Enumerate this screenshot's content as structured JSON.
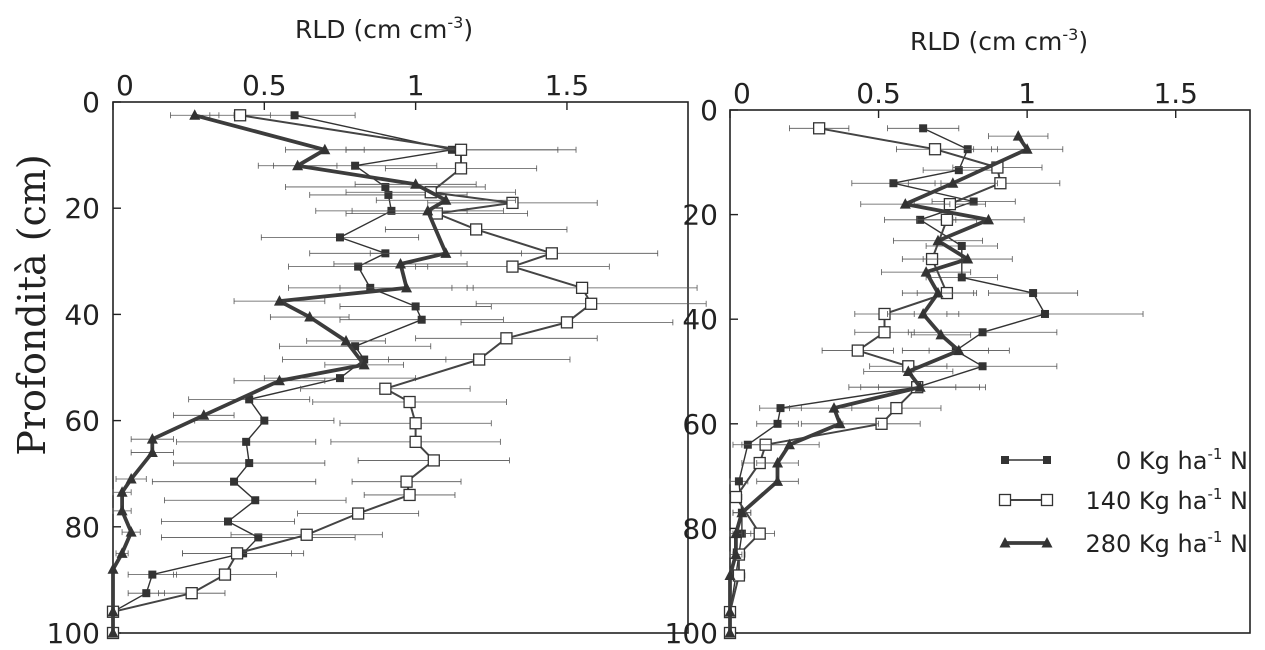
{
  "y_axis_label": "Profondità (cm)",
  "panels": [
    {
      "x_label": "RLD (cm cm",
      "x_label_sup": "-3",
      "x_label_end": ")",
      "x_ticks": [
        "0",
        "0.5",
        "1",
        "1.5"
      ],
      "y_ticks": [
        "0",
        "20",
        "40",
        "60",
        "80",
        "100"
      ]
    },
    {
      "x_label": "RLD (cm cm",
      "x_label_sup": "-3",
      "x_label_end": ")",
      "x_ticks": [
        "0",
        "0.5",
        "1",
        "1.5"
      ],
      "y_ticks": [
        "0",
        "20",
        "40",
        "60",
        "80",
        "100"
      ]
    }
  ],
  "legend": [
    {
      "pre": "0 Kg ha",
      "sup": "-1",
      "post": " N",
      "marker": "square-filled"
    },
    {
      "pre": "140 Kg ha",
      "sup": "-1",
      "post": " N",
      "marker": "square-open"
    },
    {
      "pre": "280 Kg ha",
      "sup": "-1",
      "post": " N",
      "marker": "triangle-filled"
    }
  ],
  "chart_data": [
    {
      "type": "line",
      "title": "",
      "xlabel": "RLD (cm cm-3)",
      "ylabel": "Profondità (cm)",
      "xlim": [
        0,
        1.9
      ],
      "ylim": [
        0,
        100
      ],
      "y_inverted": true,
      "x_axis_position": "top",
      "grid": false,
      "error_bars": "horizontal",
      "series": [
        {
          "name": "0 Kg ha-1 N",
          "marker": "square-filled",
          "points": [
            {
              "depth": 2.5,
              "rld": 0.6,
              "err": 0.2
            },
            {
              "depth": 9,
              "rld": 1.12,
              "err": 0.35
            },
            {
              "depth": 12,
              "rld": 0.8,
              "err": 0.27
            },
            {
              "depth": 16,
              "rld": 0.9,
              "err": 0.33
            },
            {
              "depth": 17.5,
              "rld": 0.91,
              "err": 0.26
            },
            {
              "depth": 20.5,
              "rld": 0.92,
              "err": 0.25
            },
            {
              "depth": 25.5,
              "rld": 0.75,
              "err": 0.26
            },
            {
              "depth": 28.5,
              "rld": 0.9,
              "err": 0.25
            },
            {
              "depth": 31,
              "rld": 0.81,
              "err": 0.23
            },
            {
              "depth": 35,
              "rld": 0.85,
              "err": 0.27
            },
            {
              "depth": 38.5,
              "rld": 1.0,
              "err": 0.25
            },
            {
              "depth": 41,
              "rld": 1.02,
              "err": 0.27
            },
            {
              "depth": 46,
              "rld": 0.8,
              "err": 0.25
            },
            {
              "depth": 48.5,
              "rld": 0.83,
              "err": 0.27
            },
            {
              "depth": 52,
              "rld": 0.75,
              "err": 0.25
            },
            {
              "depth": 56,
              "rld": 0.45,
              "err": 0.2
            },
            {
              "depth": 60,
              "rld": 0.5,
              "err": 0.23
            },
            {
              "depth": 64,
              "rld": 0.44,
              "err": 0.23
            },
            {
              "depth": 68,
              "rld": 0.45,
              "err": 0.25
            },
            {
              "depth": 71.5,
              "rld": 0.4,
              "err": 0.27
            },
            {
              "depth": 75,
              "rld": 0.47,
              "err": 0.3
            },
            {
              "depth": 79,
              "rld": 0.38,
              "err": 0.22
            },
            {
              "depth": 82,
              "rld": 0.48,
              "err": 0.32
            },
            {
              "depth": 85,
              "rld": 0.43,
              "err": 0.2
            },
            {
              "depth": 89,
              "rld": 0.13,
              "err": 0.08
            },
            {
              "depth": 92.5,
              "rld": 0.11,
              "err": 0.06
            },
            {
              "depth": 96,
              "rld": 0.0,
              "err": 0.0
            },
            {
              "depth": 100,
              "rld": 0.0,
              "err": 0.0
            }
          ]
        },
        {
          "name": "140 Kg ha-1 N",
          "marker": "square-open",
          "points": [
            {
              "depth": 2.5,
              "rld": 0.42,
              "err": 0.1
            },
            {
              "depth": 9,
              "rld": 1.15,
              "err": 0.38
            },
            {
              "depth": 12.5,
              "rld": 1.15,
              "err": 0.25
            },
            {
              "depth": 17,
              "rld": 1.05,
              "err": 0.28
            },
            {
              "depth": 19,
              "rld": 1.32,
              "err": 0.28
            },
            {
              "depth": 21,
              "rld": 1.07,
              "err": 0.3
            },
            {
              "depth": 24,
              "rld": 1.2,
              "err": 0.3
            },
            {
              "depth": 28.5,
              "rld": 1.45,
              "err": 0.35
            },
            {
              "depth": 31,
              "rld": 1.32,
              "err": 0.32
            },
            {
              "depth": 35,
              "rld": 1.55,
              "err": 0.38
            },
            {
              "depth": 38,
              "rld": 1.58,
              "err": 0.38
            },
            {
              "depth": 41.5,
              "rld": 1.5,
              "err": 0.35
            },
            {
              "depth": 44.5,
              "rld": 1.3,
              "err": 0.3
            },
            {
              "depth": 48.5,
              "rld": 1.21,
              "err": 0.3
            },
            {
              "depth": 54,
              "rld": 0.9,
              "err": 0.28
            },
            {
              "depth": 56.5,
              "rld": 0.98,
              "err": 0.32
            },
            {
              "depth": 60.5,
              "rld": 1.0,
              "err": 0.25
            },
            {
              "depth": 64,
              "rld": 1.0,
              "err": 0.28
            },
            {
              "depth": 67.5,
              "rld": 1.06,
              "err": 0.25
            },
            {
              "depth": 71.5,
              "rld": 0.97,
              "err": 0.18
            },
            {
              "depth": 74,
              "rld": 0.98,
              "err": 0.15
            },
            {
              "depth": 77.5,
              "rld": 0.81,
              "err": 0.2
            },
            {
              "depth": 81.5,
              "rld": 0.64,
              "err": 0.25
            },
            {
              "depth": 85,
              "rld": 0.41,
              "err": 0.18
            },
            {
              "depth": 89,
              "rld": 0.37,
              "err": 0.17
            },
            {
              "depth": 92.5,
              "rld": 0.26,
              "err": 0.11
            },
            {
              "depth": 96,
              "rld": 0.0,
              "err": 0.0
            },
            {
              "depth": 100,
              "rld": 0.0,
              "err": 0.0
            }
          ]
        },
        {
          "name": "280 Kg ha-1 N",
          "marker": "triangle-filled",
          "points": [
            {
              "depth": 2.5,
              "rld": 0.27,
              "err": 0.08
            },
            {
              "depth": 9,
              "rld": 0.7,
              "err": 0.13
            },
            {
              "depth": 12,
              "rld": 0.61,
              "err": 0.13
            },
            {
              "depth": 15.5,
              "rld": 1.0,
              "err": 0.2
            },
            {
              "depth": 18.5,
              "rld": 1.1,
              "err": 0.23
            },
            {
              "depth": 20.5,
              "rld": 1.04,
              "err": 0.25
            },
            {
              "depth": 28.5,
              "rld": 1.1,
              "err": 0.25
            },
            {
              "depth": 30.5,
              "rld": 0.95,
              "err": 0.22
            },
            {
              "depth": 35,
              "rld": 0.97,
              "err": 0.22
            },
            {
              "depth": 37.5,
              "rld": 0.55,
              "err": 0.15
            },
            {
              "depth": 40.5,
              "rld": 0.65,
              "err": 0.13
            },
            {
              "depth": 45,
              "rld": 0.77,
              "err": 0.13
            },
            {
              "depth": 49.5,
              "rld": 0.83,
              "err": 0.13
            },
            {
              "depth": 52.5,
              "rld": 0.55,
              "err": 0.15
            },
            {
              "depth": 59,
              "rld": 0.3,
              "err": 0.1
            },
            {
              "depth": 63.5,
              "rld": 0.13,
              "err": 0.07
            },
            {
              "depth": 66,
              "rld": 0.13,
              "err": 0.07
            },
            {
              "depth": 71,
              "rld": 0.06,
              "err": 0.05
            },
            {
              "depth": 73.5,
              "rld": 0.03,
              "err": 0.03
            },
            {
              "depth": 77,
              "rld": 0.03,
              "err": 0.03
            },
            {
              "depth": 81,
              "rld": 0.06,
              "err": 0.03
            },
            {
              "depth": 85,
              "rld": 0.03,
              "err": 0.02
            },
            {
              "depth": 88,
              "rld": 0.0,
              "err": 0.0
            },
            {
              "depth": 96,
              "rld": 0.0,
              "err": 0.0
            },
            {
              "depth": 100,
              "rld": 0.0,
              "err": 0.0
            }
          ]
        }
      ]
    },
    {
      "type": "line",
      "title": "",
      "xlabel": "RLD (cm cm-3)",
      "ylabel": "Profondità (cm)",
      "xlim": [
        0,
        1.75
      ],
      "ylim": [
        0,
        100
      ],
      "y_inverted": true,
      "x_axis_position": "top",
      "grid": false,
      "error_bars": "horizontal",
      "legend_position": "bottom-right",
      "series": [
        {
          "name": "0 Kg ha-1 N",
          "marker": "square-filled",
          "points": [
            {
              "depth": 3.5,
              "rld": 0.65,
              "err": 0.12
            },
            {
              "depth": 7.5,
              "rld": 0.8,
              "err": 0.1
            },
            {
              "depth": 11.5,
              "rld": 0.77,
              "err": 0.12
            },
            {
              "depth": 14,
              "rld": 0.55,
              "err": 0.14
            },
            {
              "depth": 17.5,
              "rld": 0.82,
              "err": 0.14
            },
            {
              "depth": 21,
              "rld": 0.64,
              "err": 0.12
            },
            {
              "depth": 26,
              "rld": 0.78,
              "err": 0.12
            },
            {
              "depth": 32,
              "rld": 0.78,
              "err": 0.12
            },
            {
              "depth": 35,
              "rld": 1.02,
              "err": 0.15
            },
            {
              "depth": 39,
              "rld": 1.06,
              "err": 0.33
            },
            {
              "depth": 42.5,
              "rld": 0.85,
              "err": 0.25
            },
            {
              "depth": 46,
              "rld": 0.76,
              "err": 0.18
            },
            {
              "depth": 49,
              "rld": 0.85,
              "err": 0.25
            },
            {
              "depth": 53,
              "rld": 0.63,
              "err": 0.23
            },
            {
              "depth": 57,
              "rld": 0.17,
              "err": 0.07
            },
            {
              "depth": 60,
              "rld": 0.16,
              "err": 0.07
            },
            {
              "depth": 64,
              "rld": 0.06,
              "err": 0.05
            },
            {
              "depth": 71,
              "rld": 0.03,
              "err": 0.03
            },
            {
              "depth": 77,
              "rld": 0.04,
              "err": 0.03
            },
            {
              "depth": 81,
              "rld": 0.04,
              "err": 0.03
            },
            {
              "depth": 85,
              "rld": 0.03,
              "err": 0.02
            },
            {
              "depth": 89,
              "rld": 0.02,
              "err": 0.02
            },
            {
              "depth": 96,
              "rld": 0.0,
              "err": 0.0
            },
            {
              "depth": 100,
              "rld": 0.0,
              "err": 0.0
            }
          ]
        },
        {
          "name": "140 Kg ha-1 N",
          "marker": "square-open",
          "points": [
            {
              "depth": 3.5,
              "rld": 0.3,
              "err": 0.1
            },
            {
              "depth": 7.5,
              "rld": 0.69,
              "err": 0.13
            },
            {
              "depth": 11,
              "rld": 0.9,
              "err": 0.15
            },
            {
              "depth": 14,
              "rld": 0.91,
              "err": 0.2
            },
            {
              "depth": 18,
              "rld": 0.74,
              "err": 0.12
            },
            {
              "depth": 21,
              "rld": 0.73,
              "err": 0.1
            },
            {
              "depth": 28.5,
              "rld": 0.68,
              "err": 0.1
            },
            {
              "depth": 35,
              "rld": 0.73,
              "err": 0.1
            },
            {
              "depth": 39,
              "rld": 0.52,
              "err": 0.1
            },
            {
              "depth": 42.5,
              "rld": 0.52,
              "err": 0.1
            },
            {
              "depth": 46,
              "rld": 0.43,
              "err": 0.12
            },
            {
              "depth": 49,
              "rld": 0.6,
              "err": 0.13
            },
            {
              "depth": 53,
              "rld": 0.63,
              "err": 0.13
            },
            {
              "depth": 57,
              "rld": 0.56,
              "err": 0.15
            },
            {
              "depth": 60,
              "rld": 0.51,
              "err": 0.13
            },
            {
              "depth": 64,
              "rld": 0.12,
              "err": 0.08
            },
            {
              "depth": 67.5,
              "rld": 0.1,
              "err": 0.06
            },
            {
              "depth": 74,
              "rld": 0.02,
              "err": 0.02
            },
            {
              "depth": 81,
              "rld": 0.1,
              "err": 0.05
            },
            {
              "depth": 85,
              "rld": 0.03,
              "err": 0.02
            },
            {
              "depth": 89,
              "rld": 0.03,
              "err": 0.02
            },
            {
              "depth": 96,
              "rld": 0.0,
              "err": 0.0
            },
            {
              "depth": 100,
              "rld": 0.0,
              "err": 0.0
            }
          ]
        },
        {
          "name": "280 Kg ha-1 N",
          "marker": "triangle-filled",
          "points": [
            {
              "depth": 5,
              "rld": 0.97,
              "err": 0.1
            },
            {
              "depth": 7.5,
              "rld": 1.0,
              "err": 0.12
            },
            {
              "depth": 14,
              "rld": 0.75,
              "err": 0.15
            },
            {
              "depth": 18,
              "rld": 0.59,
              "err": 0.15
            },
            {
              "depth": 21,
              "rld": 0.87,
              "err": 0.12
            },
            {
              "depth": 25,
              "rld": 0.7,
              "err": 0.15
            },
            {
              "depth": 28.5,
              "rld": 0.8,
              "err": 0.15
            },
            {
              "depth": 31,
              "rld": 0.66,
              "err": 0.15
            },
            {
              "depth": 35,
              "rld": 0.7,
              "err": 0.12
            },
            {
              "depth": 39,
              "rld": 0.65,
              "err": 0.12
            },
            {
              "depth": 43,
              "rld": 0.71,
              "err": 0.1
            },
            {
              "depth": 46,
              "rld": 0.77,
              "err": 0.1
            },
            {
              "depth": 50,
              "rld": 0.6,
              "err": 0.15
            },
            {
              "depth": 53,
              "rld": 0.64,
              "err": 0.2
            },
            {
              "depth": 57,
              "rld": 0.35,
              "err": 0.15
            },
            {
              "depth": 60,
              "rld": 0.37,
              "err": 0.13
            },
            {
              "depth": 64,
              "rld": 0.2,
              "err": 0.1
            },
            {
              "depth": 67.5,
              "rld": 0.16,
              "err": 0.07
            },
            {
              "depth": 71,
              "rld": 0.16,
              "err": 0.07
            },
            {
              "depth": 77,
              "rld": 0.04,
              "err": 0.03
            },
            {
              "depth": 81,
              "rld": 0.02,
              "err": 0.02
            },
            {
              "depth": 85,
              "rld": 0.02,
              "err": 0.02
            },
            {
              "depth": 89,
              "rld": 0.0,
              "err": 0.0
            },
            {
              "depth": 96,
              "rld": 0.0,
              "err": 0.0
            },
            {
              "depth": 100,
              "rld": 0.0,
              "err": 0.0
            }
          ]
        }
      ]
    }
  ]
}
